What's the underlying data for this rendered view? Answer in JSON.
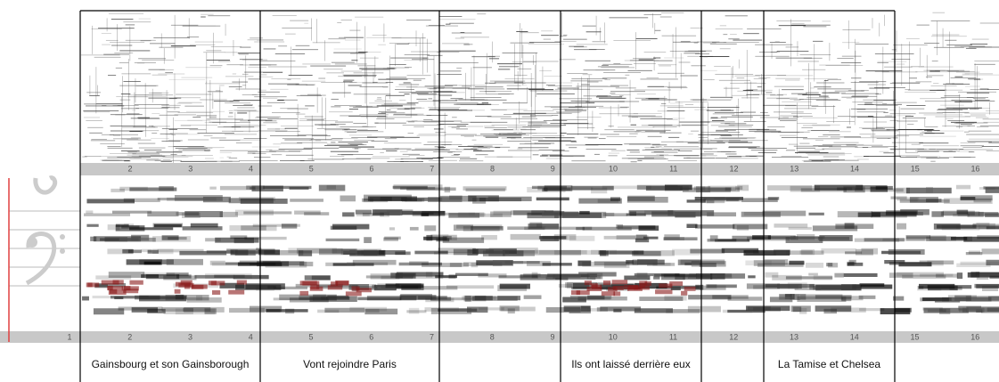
{
  "top_ruler": {
    "measures": [
      2,
      3,
      4,
      5,
      6,
      7,
      8,
      9,
      10,
      11,
      12,
      13,
      14,
      15,
      16
    ]
  },
  "bottom_ruler": {
    "measures": [
      1,
      2,
      3,
      4,
      5,
      6,
      7,
      8,
      9,
      10,
      11,
      12,
      13,
      14,
      15,
      16
    ]
  },
  "lyrics": [
    "Gainsbourg et son Gainsborough",
    "Vont rejoindre Paris",
    "Ils ont laissé derrière eux",
    "La Tamise et Chelsea"
  ]
}
